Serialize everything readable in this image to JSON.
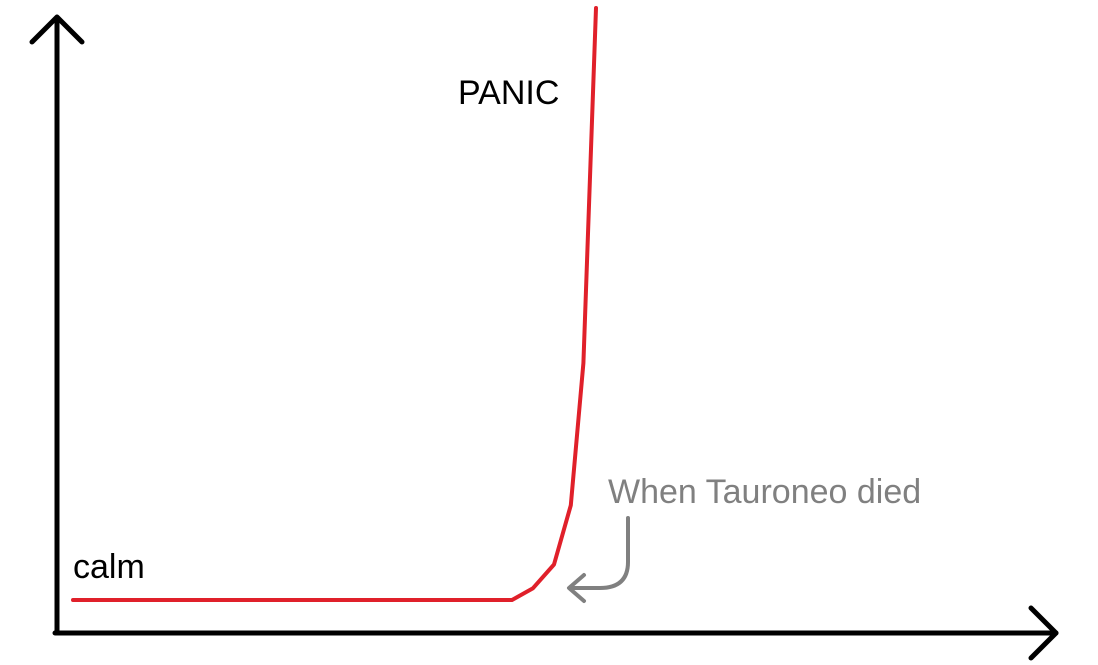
{
  "chart_data": {
    "type": "line",
    "title": "",
    "xlabel": "",
    "ylabel": "",
    "series": [
      {
        "color": "#e0202a",
        "x": [
          0,
          0.05,
          0.1,
          0.15,
          0.2,
          0.25,
          0.3,
          0.35,
          0.4,
          0.45,
          0.5,
          0.55,
          0.6,
          0.65,
          0.7,
          0.75,
          0.8,
          0.85,
          0.9,
          0.94,
          0.97,
          1.0
        ],
        "y": [
          0,
          0,
          0,
          0,
          0,
          0,
          0,
          0,
          0,
          0,
          0,
          0,
          0,
          0,
          0,
          0,
          0,
          0.02,
          0.06,
          0.16,
          0.4,
          1.0
        ]
      }
    ],
    "annotations": {
      "low_label": "calm",
      "high_label": "PANIC",
      "event_label": "When Tauroneo died",
      "event_color": "#808080"
    },
    "axis_color": "#000000",
    "grid": false,
    "legend": "none"
  }
}
